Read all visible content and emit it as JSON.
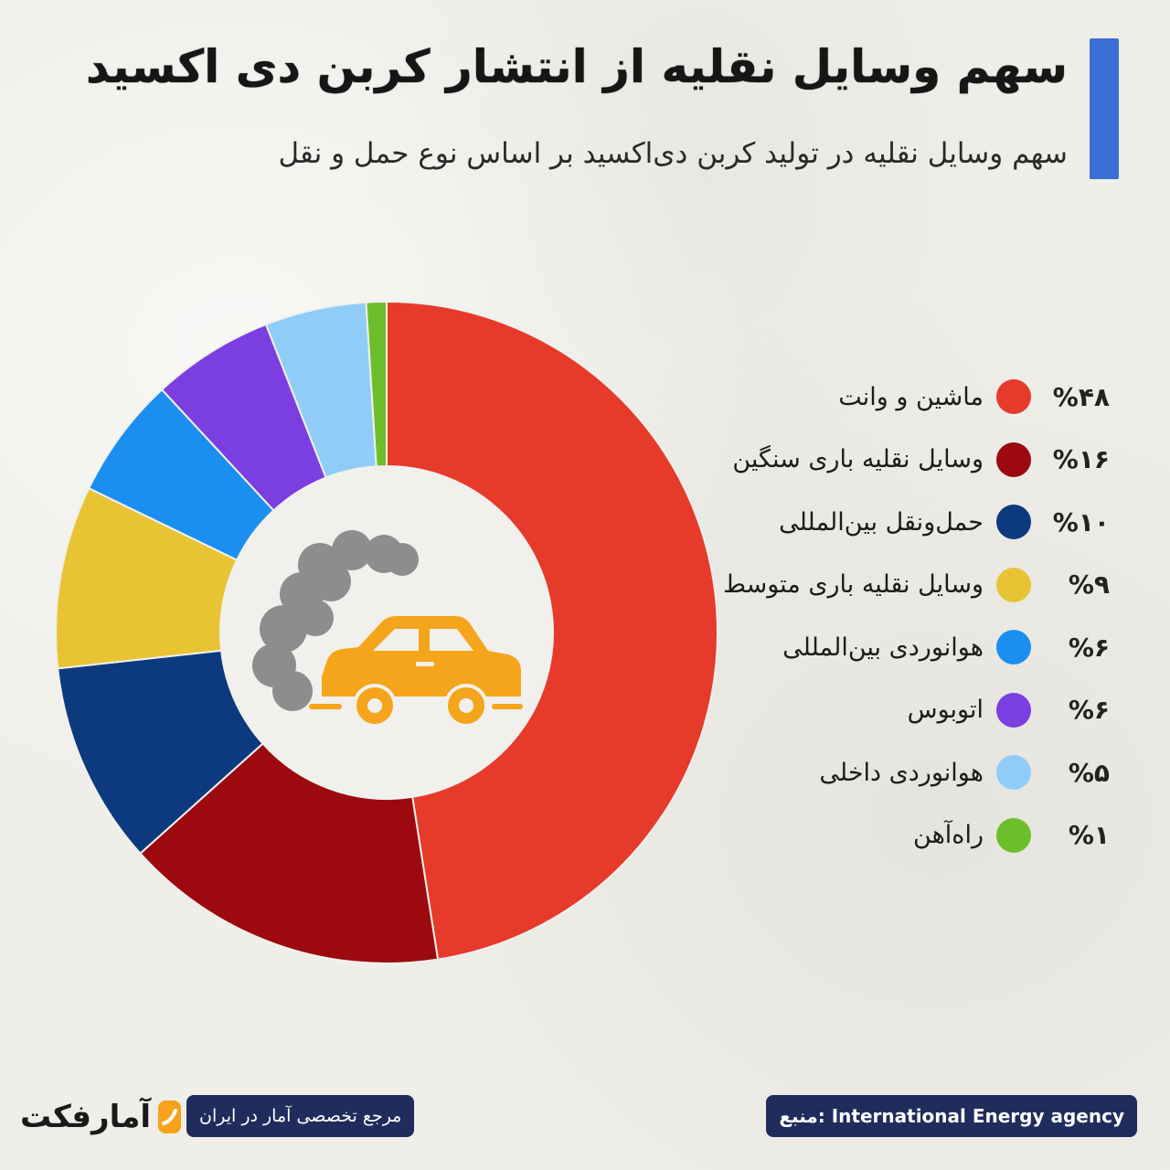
{
  "title": "سهم وسایل نقلیه از انتشار کربن دی اکسید",
  "subtitle": "سهم وسایل نقلیه در تولید کربن دی‌اکسید بر اساس نوع حمل و نقل",
  "accent_color": "#3b6fd8",
  "center_icon": "car-emission-icon",
  "chart_data": {
    "type": "pie",
    "donut": true,
    "title": "سهم وسایل نقلیه از انتشار کربن دی اکسید",
    "categories": [
      "ماشین و وانت",
      "وسایل نقلیه باری سنگین",
      "حمل‌ونقل بین‌المللی",
      "وسایل نقلیه باری متوسط",
      "هوانوردی بین‌المللی",
      "اتوبوس",
      "هوانوردی داخلی",
      "راه‌آهن"
    ],
    "values": [
      48,
      16,
      10,
      9,
      6,
      6,
      5,
      1
    ],
    "value_labels": [
      "%۴۸",
      "%۱۶",
      "%۱۰",
      "%۹",
      "%۶",
      "%۶",
      "%۵",
      "%۱"
    ],
    "colors": [
      "#e63a2a",
      "#9c0a10",
      "#0d3a7e",
      "#e8c435",
      "#1a8ff0",
      "#7b3ee0",
      "#8fcdf8",
      "#6cbf2a"
    ],
    "legend_position": "right"
  },
  "footer": {
    "source": "منبع: International Energy agency",
    "tagline": "مرجع تخصصی آمار در ایران",
    "logo_text": "آمارفکت"
  }
}
